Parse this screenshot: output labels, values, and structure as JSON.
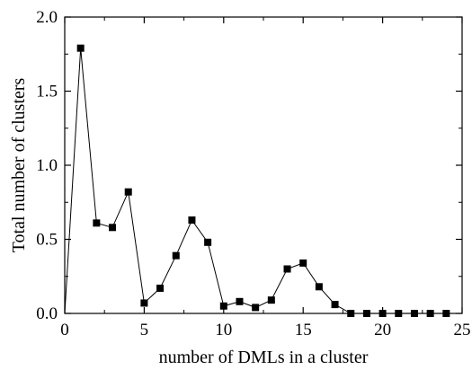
{
  "chart_data": {
    "type": "line",
    "title": "",
    "xlabel": "number of DMLs in a cluster",
    "ylabel": "Total number of clusters",
    "xlim": [
      0,
      25
    ],
    "ylim": [
      0.0,
      2.0
    ],
    "grid": false,
    "legend": "none",
    "marker": "square",
    "colors": {
      "line": "#000000",
      "marker": "#000000",
      "frame": "#000000"
    },
    "x_ticks": [
      0,
      5,
      10,
      15,
      20,
      25
    ],
    "x_tick_labels": [
      "0",
      "5",
      "10",
      "15",
      "20",
      "25"
    ],
    "y_ticks": [
      0.0,
      0.5,
      1.0,
      1.5,
      2.0
    ],
    "y_tick_labels": [
      "0.0",
      "0.5",
      "1.0",
      "1.5",
      "2.0"
    ],
    "series": [
      {
        "x": [
          0,
          1,
          2,
          3,
          4,
          5,
          6,
          7,
          8,
          9,
          10,
          11,
          12,
          13,
          14,
          15,
          16,
          17,
          18,
          19,
          20,
          21,
          22,
          23,
          24
        ],
        "values": [
          0.0,
          1.79,
          0.61,
          0.58,
          0.82,
          0.07,
          0.17,
          0.39,
          0.63,
          0.48,
          0.05,
          0.08,
          0.04,
          0.09,
          0.3,
          0.34,
          0.18,
          0.06,
          0.0,
          0.0,
          0.0,
          0.0,
          0.0,
          0.0,
          0.0
        ],
        "markers": [
          false,
          true,
          true,
          true,
          true,
          true,
          true,
          true,
          true,
          true,
          true,
          true,
          true,
          true,
          true,
          true,
          true,
          true,
          true,
          true,
          true,
          true,
          true,
          true,
          true
        ]
      }
    ]
  }
}
